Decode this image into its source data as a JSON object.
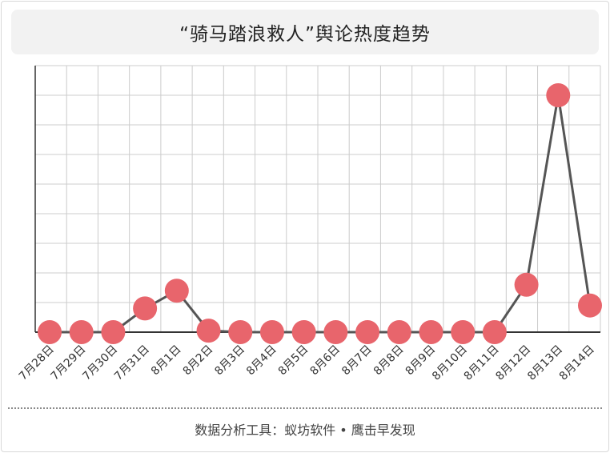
{
  "title": "“骑马踏浪救人”舆论热度趋势",
  "footer": "数据分析工具：蚁坊软件 • 鹰击早发现",
  "colors": {
    "line": "#555555",
    "marker": "#e8656c",
    "grid": "#cccccc",
    "axis": "#333333"
  },
  "chart_data": {
    "type": "line",
    "categories": [
      "7月28日",
      "7月29日",
      "7月30日",
      "7月31日",
      "8月1日",
      "8月2日",
      "8月3日",
      "8月4日",
      "8月5日",
      "8月6日",
      "8月7日",
      "8月8日",
      "8月9日",
      "8月10日",
      "8月11日",
      "8月12日",
      "8月13日",
      "8月14日"
    ],
    "values": [
      0,
      0,
      0,
      8,
      14,
      0.5,
      0,
      0,
      0,
      0,
      0,
      0,
      0,
      0,
      0,
      16,
      80,
      9
    ],
    "ylim": [
      0,
      90
    ],
    "y_tick_labels_shown": false,
    "grid": true,
    "xlabel": "",
    "ylabel": ""
  }
}
